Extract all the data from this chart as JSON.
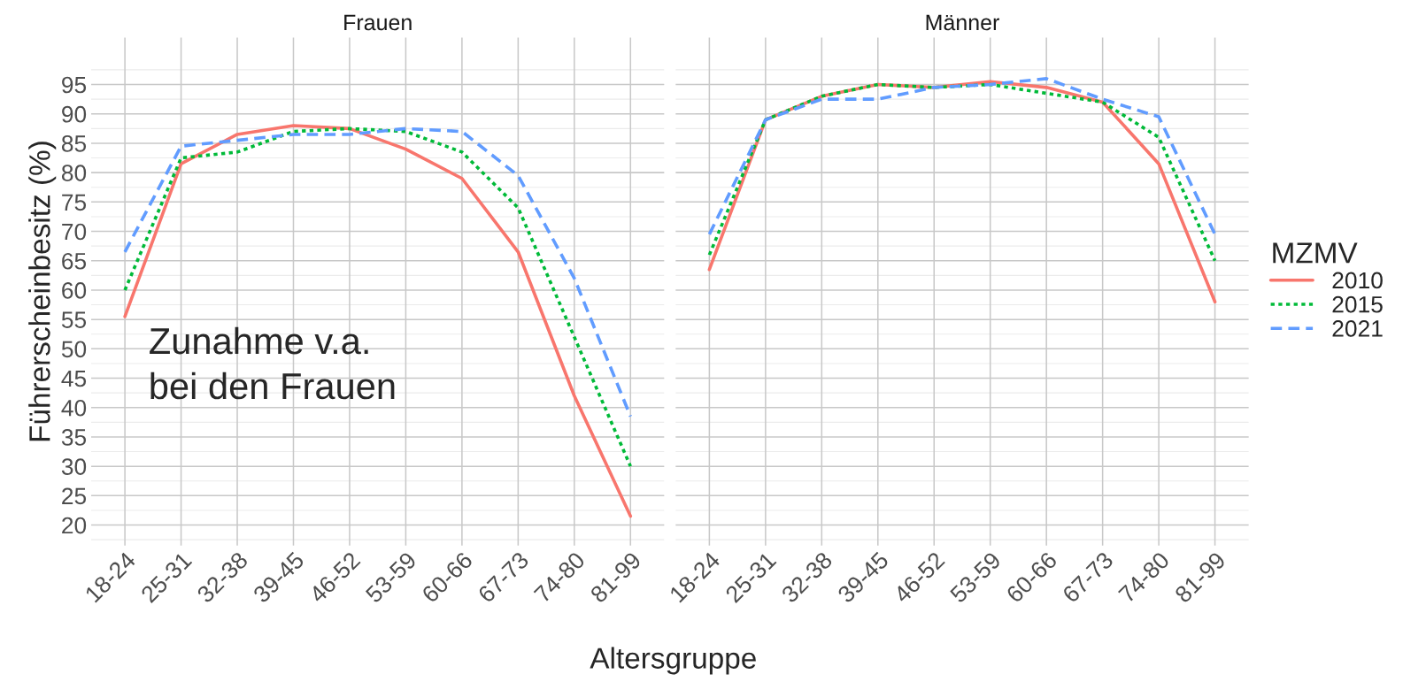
{
  "chart_data": [
    {
      "type": "line",
      "title": "Frauen",
      "ylabel": "Führerscheinbesitz (%)",
      "xlabel": "Altersgruppe",
      "categories": [
        "18-24",
        "25-31",
        "32-38",
        "39-45",
        "46-52",
        "53-59",
        "60-66",
        "67-73",
        "74-80",
        "81-99"
      ],
      "ylim": [
        16.5,
        103
      ],
      "yticks": [
        20,
        25,
        30,
        35,
        40,
        45,
        50,
        55,
        60,
        65,
        70,
        75,
        80,
        85,
        90,
        95
      ],
      "grid": true,
      "legend": "right",
      "legend_title": "MZMV",
      "annotations": [
        "Zunahme v.a.\nbei den Frauen"
      ],
      "series": [
        {
          "name": "2010",
          "color": "#f8766d",
          "line_style": "solid",
          "values": [
            55.5,
            81.5,
            86.5,
            88,
            87.5,
            84,
            79,
            66.5,
            42,
            21.5
          ]
        },
        {
          "name": "2015",
          "color": "#00ba38",
          "line_style": "dotted",
          "values": [
            60,
            82.5,
            83.5,
            87,
            87.5,
            87,
            83.5,
            74,
            52,
            30
          ]
        },
        {
          "name": "2021",
          "color": "#619cff",
          "line_style": "dashed",
          "values": [
            66.5,
            84.5,
            85.5,
            86.5,
            86.5,
            87.5,
            87,
            79.5,
            62,
            38.5
          ]
        }
      ]
    },
    {
      "type": "line",
      "title": "Männer",
      "categories": [
        "18-24",
        "25-31",
        "32-38",
        "39-45",
        "46-52",
        "53-59",
        "60-66",
        "67-73",
        "74-80",
        "81-99"
      ],
      "ylim": [
        16.5,
        103
      ],
      "tick_labels": "x",
      "grid": true,
      "series": [
        {
          "name": "2010",
          "color": "#f8766d",
          "line_style": "solid",
          "values": [
            63.5,
            89,
            93,
            95,
            94.5,
            95.5,
            94.5,
            92,
            81.5,
            58
          ]
        },
        {
          "name": "2015",
          "color": "#00ba38",
          "line_style": "dotted",
          "values": [
            66,
            89,
            93,
            95,
            94.5,
            95,
            93.5,
            92,
            86,
            65
          ]
        },
        {
          "name": "2021",
          "color": "#619cff",
          "line_style": "dashed",
          "values": [
            69.5,
            89,
            92.5,
            92.5,
            94.5,
            95,
            96,
            92.5,
            89.5,
            69.5
          ]
        }
      ]
    }
  ]
}
